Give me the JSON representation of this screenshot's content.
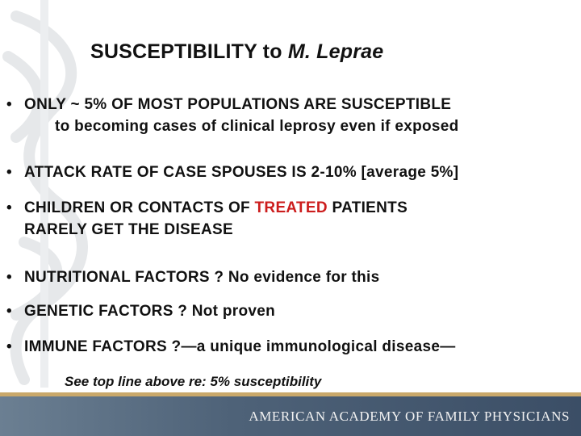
{
  "title": {
    "main": "SUSCEPTIBILITY to ",
    "italic": "M. Leprae"
  },
  "bullets": {
    "b1": {
      "line1": "ONLY ~ 5% OF MOST POPULATIONS ARE SUSCEPTIBLE",
      "line2": "to becoming cases of clinical leprosy even if exposed"
    },
    "b2": {
      "line1": "ATTACK RATE OF CASE SPOUSES IS 2-10% [average 5%]"
    },
    "b3": {
      "pre": "CHILDREN OR CONTACTS OF ",
      "highlight": "TREATED",
      "post": " PATIENTS",
      "line2": "RARELY GET THE DISEASE"
    },
    "b4": {
      "line1": "NUTRITIONAL FACTORS ?  No evidence for this"
    },
    "b5": {
      "line1": "GENETIC FACTORS ?  Not proven"
    },
    "b6": {
      "line1": "IMMUNE FACTORS ?—a unique immunological disease—"
    }
  },
  "bullet_symbol": "•",
  "note": "See top line above re: 5% susceptibility",
  "footer": {
    "text": "AMERICAN ACADEMY OF FAMILY PHYSICIANS"
  },
  "colors": {
    "highlight": "#cc1d1d",
    "footer_bg": "#4e6278",
    "footer_rule": "#c9a86a"
  }
}
